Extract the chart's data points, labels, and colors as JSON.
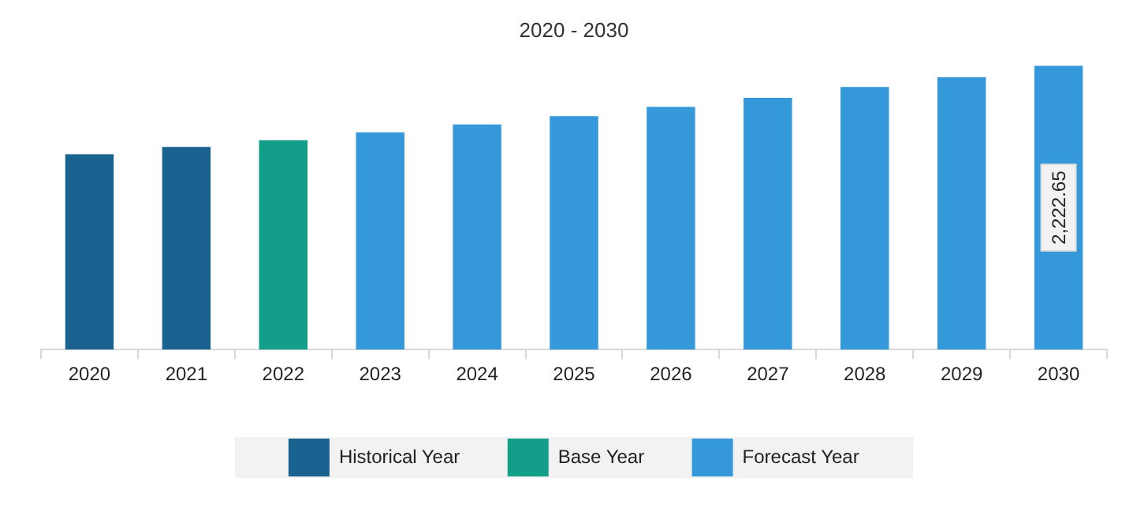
{
  "chart_data": {
    "type": "bar",
    "title": "2020 - 2030",
    "categories": [
      "2020",
      "2021",
      "2022",
      "2023",
      "2024",
      "2025",
      "2026",
      "2027",
      "2028",
      "2029",
      "2030"
    ],
    "series": [
      {
        "name": "Historical Year",
        "color": "#1a6391",
        "values": [
          1529,
          1587,
          null,
          null,
          null,
          null,
          null,
          null,
          null,
          null,
          null
        ]
      },
      {
        "name": "Base Year",
        "color": "#139e8a",
        "values": [
          null,
          null,
          1639,
          null,
          null,
          null,
          null,
          null,
          null,
          null,
          null
        ]
      },
      {
        "name": "Forecast Year",
        "color": "#3498db",
        "values": [
          null,
          null,
          null,
          1701,
          1762,
          1827,
          1899,
          1971,
          2056,
          2131,
          2222.65
        ],
        "value_labels": [
          null,
          null,
          null,
          null,
          null,
          null,
          null,
          null,
          null,
          null,
          "2,222.65"
        ]
      }
    ],
    "legend": "bottom",
    "grid": false
  }
}
